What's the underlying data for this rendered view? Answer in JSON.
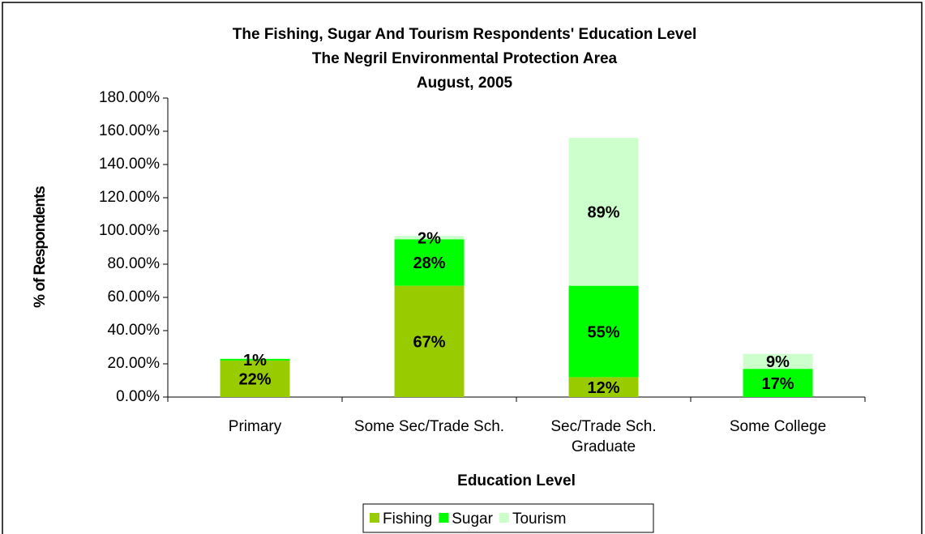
{
  "chart_data": {
    "type": "stacked_bar",
    "title": [
      "The Fishing, Sugar And Tourism Respondents' Education Level",
      "The Negril Environmental Protection Area",
      "August, 2005"
    ],
    "x_label": "Education Level",
    "y_label": "% of Respondents",
    "categories": [
      "Primary",
      "Some Sec/Trade Sch.",
      "Sec/Trade Sch. Graduate",
      "Some College"
    ],
    "series": [
      {
        "name": "Fishing",
        "color": "#99cc00",
        "values": [
          22,
          67,
          12,
          0
        ],
        "value_labels": [
          "22%",
          "67%",
          "12%",
          null
        ]
      },
      {
        "name": "Sugar",
        "color": "#00ff00",
        "values": [
          1,
          28,
          55,
          17
        ],
        "value_labels": [
          "1%",
          "28%",
          "55%",
          "17%"
        ]
      },
      {
        "name": "Tourism",
        "color": "#ccffcc",
        "values": [
          0,
          2,
          89,
          9
        ],
        "value_labels": [
          null,
          "2%",
          "89%",
          "9%"
        ]
      }
    ],
    "ylim": [
      0,
      180
    ],
    "yticks": [
      {
        "value": 0,
        "label": "0.00%"
      },
      {
        "value": 20,
        "label": "20.00%"
      },
      {
        "value": 40,
        "label": "40.00%"
      },
      {
        "value": 60,
        "label": "60.00%"
      },
      {
        "value": 80,
        "label": "80.00%"
      },
      {
        "value": 100,
        "label": "100.00%"
      },
      {
        "value": 120,
        "label": "120.00%"
      },
      {
        "value": 140,
        "label": "140.00%"
      },
      {
        "value": 160,
        "label": "160.00%"
      },
      {
        "value": 180,
        "label": "180.00%"
      }
    ],
    "grid": false,
    "legend": "bottom"
  }
}
